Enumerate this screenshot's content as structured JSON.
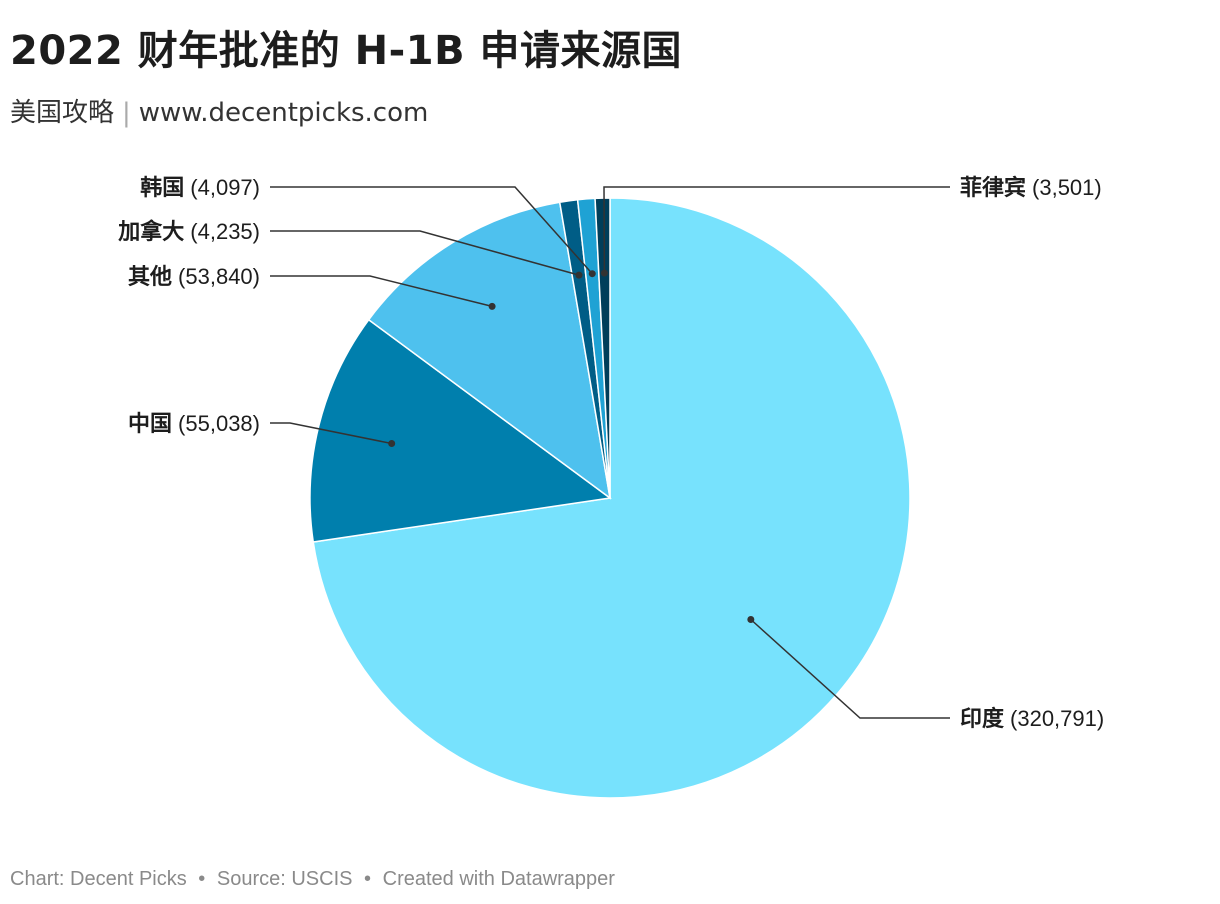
{
  "title": "2022 财年批准的 H-1B 申请来源国",
  "subtitle": {
    "author": "美国攻略",
    "separator": "|",
    "website": "www.decentpicks.com"
  },
  "footer": {
    "chart": "Chart: Decent Picks",
    "bullet": "•",
    "source": "Source: USCIS",
    "created": "Created with Datawrapper"
  },
  "chart_data": {
    "type": "pie",
    "title": "2022 财年批准的 H-1B 申请来源国",
    "slices": [
      {
        "name": "印度",
        "value": 320791,
        "label": "(320,791)",
        "color": "#77e2fd"
      },
      {
        "name": "中国",
        "value": 55038,
        "label": "(55,038)",
        "color": "#007fad"
      },
      {
        "name": "其他",
        "value": 53840,
        "label": "(53,840)",
        "color": "#4ec1ee"
      },
      {
        "name": "加拿大",
        "value": 4235,
        "label": "(4,235)",
        "color": "#005d86"
      },
      {
        "name": "韩国",
        "value": 4097,
        "label": "(4,097)",
        "color": "#1fa2d4"
      },
      {
        "name": "菲律宾",
        "value": 3501,
        "label": "(3,501)",
        "color": "#003e5a"
      }
    ],
    "start": "12 o'clock",
    "direction": "clockwise",
    "slice_border_color": "#ffffff",
    "leader_line_color": "#333333"
  }
}
